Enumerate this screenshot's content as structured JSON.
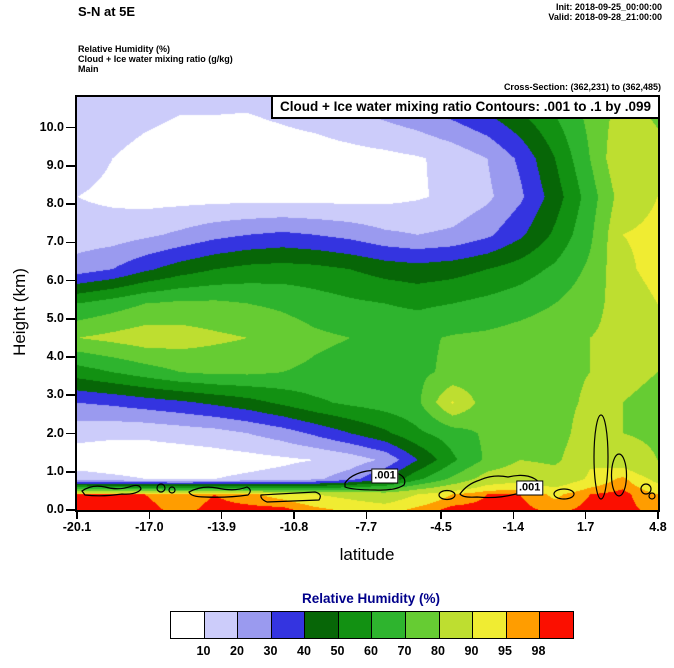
{
  "header": {
    "title": "S-N at 5E",
    "init": "Init: 2018-09-25_00:00:00",
    "valid": "Valid: 2018-09-28_21:00:00",
    "field_lines": [
      "Relative Humidity  (%)",
      "Cloud + Ice water mixing ratio  (g/kg)",
      "Main"
    ],
    "cross_section": "Cross-Section: (362,231) to (362,485)"
  },
  "plot": {
    "title_box": "Cloud + Ice water mixing ratio Contours: .001 to .1 by .099",
    "xlabel": "latitude",
    "ylabel": "Height (km)"
  },
  "legend": {
    "title": "Relative Humidity  (%)",
    "title_color": "#00008b",
    "labels": [
      "10",
      "20",
      "30",
      "40",
      "50",
      "60",
      "70",
      "80",
      "90",
      "95",
      "98"
    ]
  },
  "chart_data": {
    "type": "heatmap",
    "title": "Cloud + Ice water mixing ratio Contours: .001 to .1 by .099",
    "subtitle": "S-N cross section at 5E of Relative Humidity (filled, %) with cloud + ice water mixing ratio contours (g/kg)",
    "xlabel": "latitude",
    "ylabel": "Height (km)",
    "xlim": [
      -20.1,
      4.8
    ],
    "ylim": [
      0,
      10.8
    ],
    "x_ticks": {
      "values": [
        -20.1,
        -17.0,
        -13.9,
        -10.8,
        -7.7,
        -4.5,
        -1.4,
        1.7,
        4.8
      ],
      "labels": [
        "-20.1",
        "-17.0",
        "-13.9",
        "-10.8",
        "-7.7",
        "-4.5",
        "-1.4",
        "1.7",
        "4.8"
      ]
    },
    "y_ticks": {
      "values": [
        0,
        1,
        2,
        3,
        4,
        5,
        6,
        7,
        8,
        9,
        10
      ],
      "labels": [
        "0.0",
        "1.0",
        "2.0",
        "3.0",
        "4.0",
        "5.0",
        "6.0",
        "7.0",
        "8.0",
        "9.0",
        "10.0"
      ]
    },
    "levels": [
      10,
      20,
      30,
      40,
      50,
      60,
      70,
      80,
      90,
      95,
      98
    ],
    "colors": [
      "#ffffff",
      "#ccccfa",
      "#9a9aef",
      "#3434e0",
      "#076607",
      "#129112",
      "#2eb42e",
      "#66cc33",
      "#bede30",
      "#f0ec32",
      "#ff9d00",
      "#fb0f00"
    ],
    "grid": {
      "lat": [
        -20.1,
        -18.6,
        -17.2,
        -15.7,
        -14.2,
        -12.8,
        -11.3,
        -9.9,
        -8.4,
        -6.9,
        -5.5,
        -4.0,
        -2.5,
        -1.1,
        0.4,
        1.9,
        3.3,
        4.8
      ],
      "height": [
        0,
        0.4,
        0.8,
        1.3,
        2.0,
        2.8,
        3.6,
        4.5,
        5.4,
        6.3,
        7.2,
        8.2,
        9.2,
        10.8
      ],
      "rh_rows_bottom_to_top": [
        [
          99,
          99,
          99,
          97,
          99,
          99,
          99,
          96,
          94,
          93,
          96,
          99,
          99,
          99,
          97,
          99,
          99,
          97
        ],
        [
          99,
          99,
          98,
          96,
          98,
          96,
          93,
          90,
          88,
          85,
          90,
          95,
          98,
          98,
          94,
          98,
          99,
          95
        ],
        [
          14,
          12,
          10,
          10,
          10,
          12,
          14,
          18,
          26,
          40,
          58,
          72,
          85,
          88,
          85,
          91,
          96,
          88
        ],
        [
          5,
          4,
          4,
          4,
          5,
          6,
          8,
          10,
          14,
          22,
          40,
          58,
          72,
          80,
          78,
          89,
          86,
          80
        ],
        [
          13,
          12,
          12,
          14,
          16,
          20,
          25,
          32,
          40,
          48,
          58,
          65,
          72,
          76,
          75,
          86,
          80,
          78
        ],
        [
          30,
          32,
          35,
          38,
          42,
          46,
          52,
          58,
          62,
          65,
          68,
          91,
          74,
          76,
          76,
          82,
          80,
          78
        ],
        [
          55,
          60,
          65,
          70,
          72,
          72,
          70,
          68,
          66,
          66,
          68,
          72,
          74,
          75,
          77,
          80,
          82,
          80
        ],
        [
          80,
          83,
          86,
          85,
          82,
          80,
          76,
          72,
          70,
          68,
          68,
          71,
          72,
          74,
          76,
          80,
          83,
          85
        ],
        [
          60,
          65,
          70,
          72,
          72,
          70,
          68,
          65,
          62,
          60,
          58,
          60,
          63,
          66,
          70,
          76,
          85,
          90
        ],
        [
          25,
          30,
          38,
          45,
          50,
          53,
          54,
          53,
          50,
          46,
          44,
          46,
          50,
          55,
          62,
          72,
          88,
          93
        ],
        [
          14,
          15,
          18,
          22,
          27,
          30,
          32,
          30,
          27,
          22,
          20,
          22,
          28,
          38,
          52,
          68,
          90,
          92
        ],
        [
          10,
          8,
          6,
          6,
          6,
          6,
          6,
          6,
          6,
          7,
          9,
          12,
          18,
          28,
          45,
          65,
          85,
          90
        ],
        [
          14,
          10,
          7,
          5,
          5,
          4,
          5,
          5,
          6,
          7,
          9,
          13,
          20,
          32,
          50,
          70,
          90,
          84
        ],
        [
          18,
          16,
          14,
          12,
          12,
          12,
          14,
          17,
          22,
          28,
          33,
          40,
          47,
          55,
          64,
          74,
          82,
          76
        ]
      ]
    },
    "contour_overlay": {
      "field": "Cloud + Ice water mixing ratio",
      "units": "g/kg",
      "range_text": ".001 to .1 by .099"
    },
    "contour_labels": [
      {
        "text": ".001",
        "lat": -6.9,
        "height": 0.88
      },
      {
        "text": ".001",
        "lat": -0.7,
        "height": 0.58
      }
    ]
  }
}
